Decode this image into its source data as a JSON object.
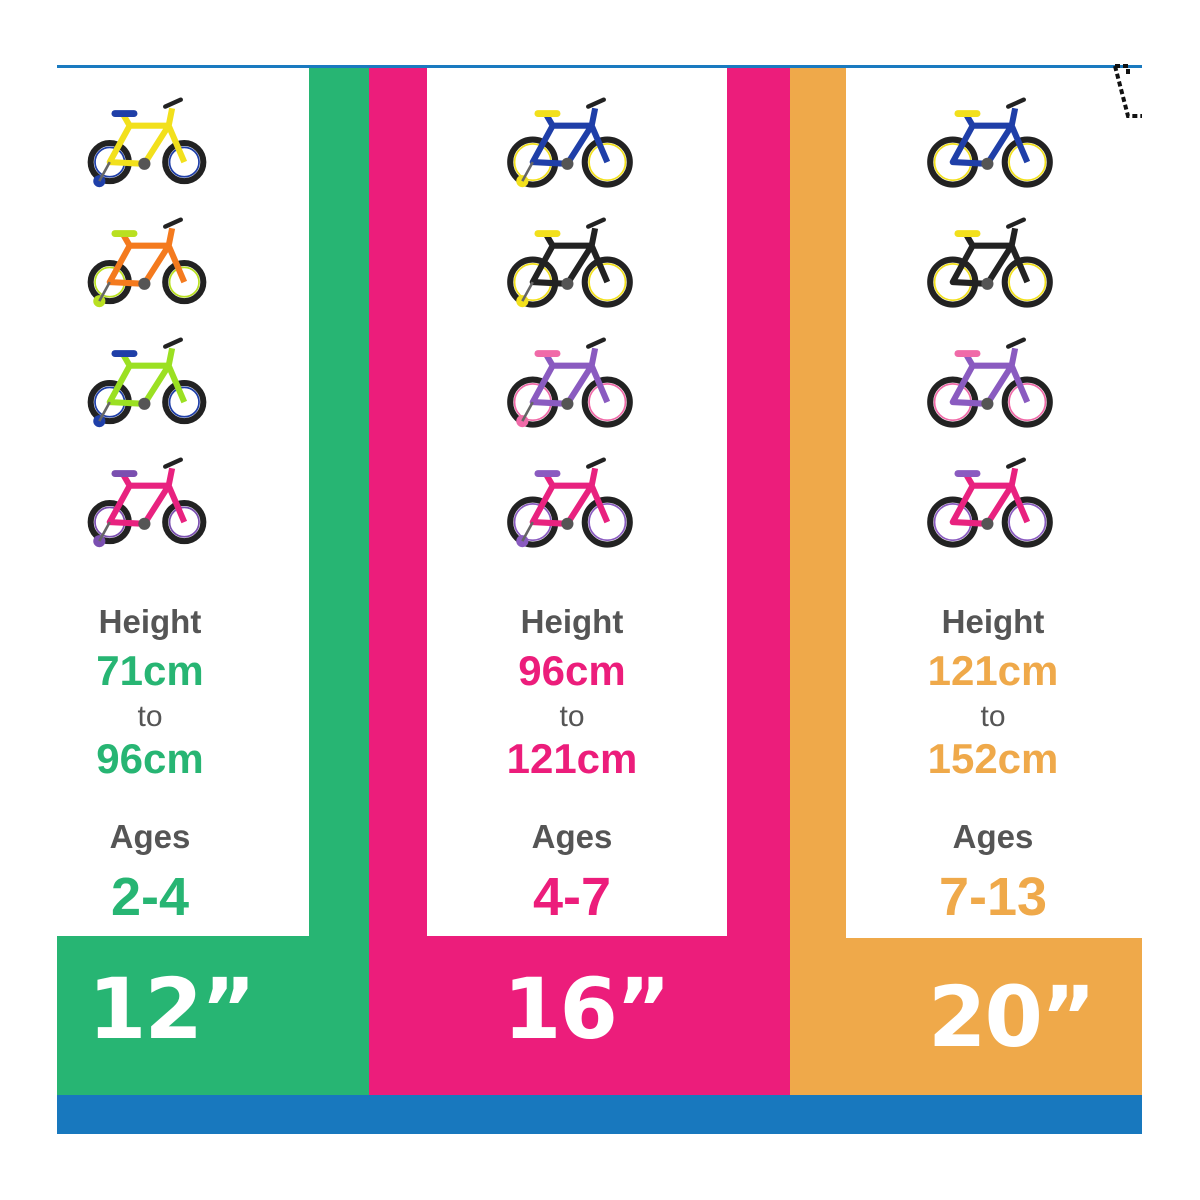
{
  "labels": {
    "height": "Height",
    "to": "to",
    "ages": "Ages"
  },
  "columns": [
    {
      "size": "12”",
      "height_min": "71cm",
      "height_max": "96cm",
      "ages": "2-4",
      "color": "#27b573",
      "bikes": [
        {
          "frame": "#f2e01c",
          "accent": "#1f3fa8"
        },
        {
          "frame": "#f47a1e",
          "accent": "#b9e021"
        },
        {
          "frame": "#9be022",
          "accent": "#1f3fa8"
        },
        {
          "frame": "#e8227f",
          "accent": "#7a4fb0"
        }
      ]
    },
    {
      "size": "16”",
      "height_min": "96cm",
      "height_max": "121cm",
      "ages": "4-7",
      "color": "#ec1d7b",
      "bikes": [
        {
          "frame": "#1f3fa8",
          "accent": "#f2e01c"
        },
        {
          "frame": "#222222",
          "accent": "#f2e01c"
        },
        {
          "frame": "#8a5bc0",
          "accent": "#f06aa8"
        },
        {
          "frame": "#e8227f",
          "accent": "#8a5bc0"
        }
      ]
    },
    {
      "size": "20”",
      "height_min": "121cm",
      "height_max": "152cm",
      "ages": "7-13",
      "color": "#efa94a",
      "bikes": [
        {
          "frame": "#1f3fa8",
          "accent": "#f2e01c"
        },
        {
          "frame": "#222222",
          "accent": "#f2e01c"
        },
        {
          "frame": "#8a5bc0",
          "accent": "#f06aa8"
        },
        {
          "frame": "#e8227f",
          "accent": "#8a5bc0"
        }
      ]
    }
  ],
  "colors": {
    "blue_bar": "#1878be"
  }
}
